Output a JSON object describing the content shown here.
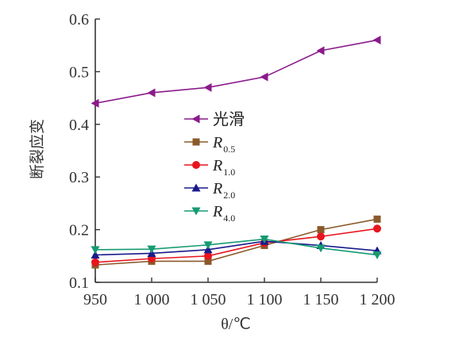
{
  "chart_data": {
    "type": "line",
    "xlabel": "θ/℃",
    "ylabel": "断裂应变",
    "x": [
      950,
      1000,
      1050,
      1100,
      1150,
      1200
    ],
    "x_tick_labels": [
      "950",
      "1 000",
      "1 050",
      "1 100",
      "1 150",
      "1 200"
    ],
    "y_ticks": [
      0.1,
      0.2,
      0.3,
      0.4,
      0.5,
      0.6
    ],
    "y_tick_labels": [
      "0.1",
      "0.2",
      "0.3",
      "0.4",
      "0.5",
      "0.6"
    ],
    "xlim": [
      950,
      1200
    ],
    "ylim": [
      0.1,
      0.6
    ],
    "grid": false,
    "legend_position": "center-left",
    "series": [
      {
        "name": "光滑",
        "color": "#8b1a8b",
        "marker": "triangle-left",
        "values": [
          0.44,
          0.46,
          0.47,
          0.49,
          0.54,
          0.56
        ]
      },
      {
        "name": "R",
        "subscript": "0.5",
        "color": "#8b5a2b",
        "marker": "square",
        "values": [
          0.133,
          0.14,
          0.14,
          0.17,
          0.2,
          0.22
        ]
      },
      {
        "name": "R",
        "subscript": "1.0",
        "color": "#e8141e",
        "marker": "circle",
        "values": [
          0.138,
          0.145,
          0.15,
          0.175,
          0.187,
          0.202
        ]
      },
      {
        "name": "R",
        "subscript": "2.0",
        "color": "#1a1a8c",
        "marker": "triangle-up",
        "values": [
          0.152,
          0.155,
          0.162,
          0.178,
          0.17,
          0.16
        ]
      },
      {
        "name": "R",
        "subscript": "4.0",
        "color": "#159b72",
        "marker": "triangle-down",
        "values": [
          0.162,
          0.163,
          0.171,
          0.182,
          0.165,
          0.152
        ]
      }
    ]
  }
}
